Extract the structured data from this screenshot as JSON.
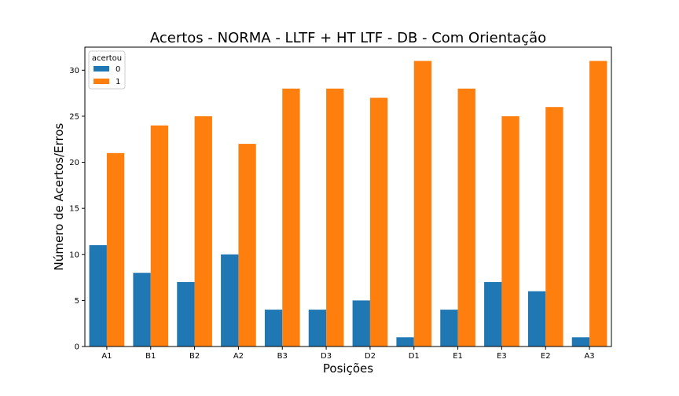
{
  "chart_data": {
    "type": "bar",
    "title": "Acertos - NORMA - LLTF + HT LTF - DB - Com Orientação",
    "xlabel": "Posições",
    "ylabel": "Número de Acertos/Erros",
    "categories": [
      "A1",
      "B1",
      "B2",
      "A2",
      "B3",
      "D3",
      "D2",
      "D1",
      "E1",
      "E3",
      "E2",
      "A3"
    ],
    "ylim": [
      0,
      32.5
    ],
    "yticks": [
      0,
      5,
      10,
      15,
      20,
      25,
      30
    ],
    "grid": false,
    "legend": {
      "title": "acertou",
      "placement": "top-left"
    },
    "series": [
      {
        "name": "0",
        "color": "#1f77b4",
        "values": [
          11,
          8,
          7,
          10,
          4,
          4,
          5,
          1,
          4,
          7,
          6,
          1
        ]
      },
      {
        "name": "1",
        "color": "#ff7f0e",
        "values": [
          21,
          24,
          25,
          22,
          28,
          28,
          27,
          31,
          28,
          25,
          26,
          31
        ]
      }
    ]
  }
}
